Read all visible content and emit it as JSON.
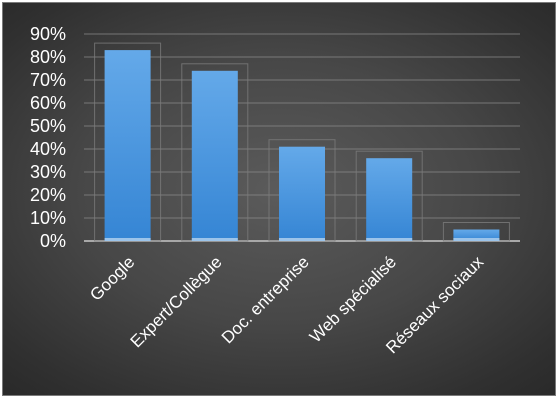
{
  "chart_data": {
    "type": "bar",
    "title": "",
    "xlabel": "",
    "ylabel": "",
    "categories": [
      "Google",
      "Expert/Collègue",
      "Doc. entreprise",
      "Web spécialisé",
      "Réseaux sociaux"
    ],
    "values": [
      83,
      74,
      41,
      36,
      5
    ],
    "unit": "%",
    "ylim": [
      0,
      90
    ],
    "yticks": [
      "0%",
      "10%",
      "20%",
      "30%",
      "40%",
      "50%",
      "60%",
      "70%",
      "80%",
      "90%"
    ],
    "grid": true,
    "legend": "none",
    "colors": {
      "bar": "#3f8fd9",
      "bar_top": "#62a8e8",
      "background": "#474747",
      "gridline": "#8a8a8a",
      "text": "#ffffff"
    }
  }
}
